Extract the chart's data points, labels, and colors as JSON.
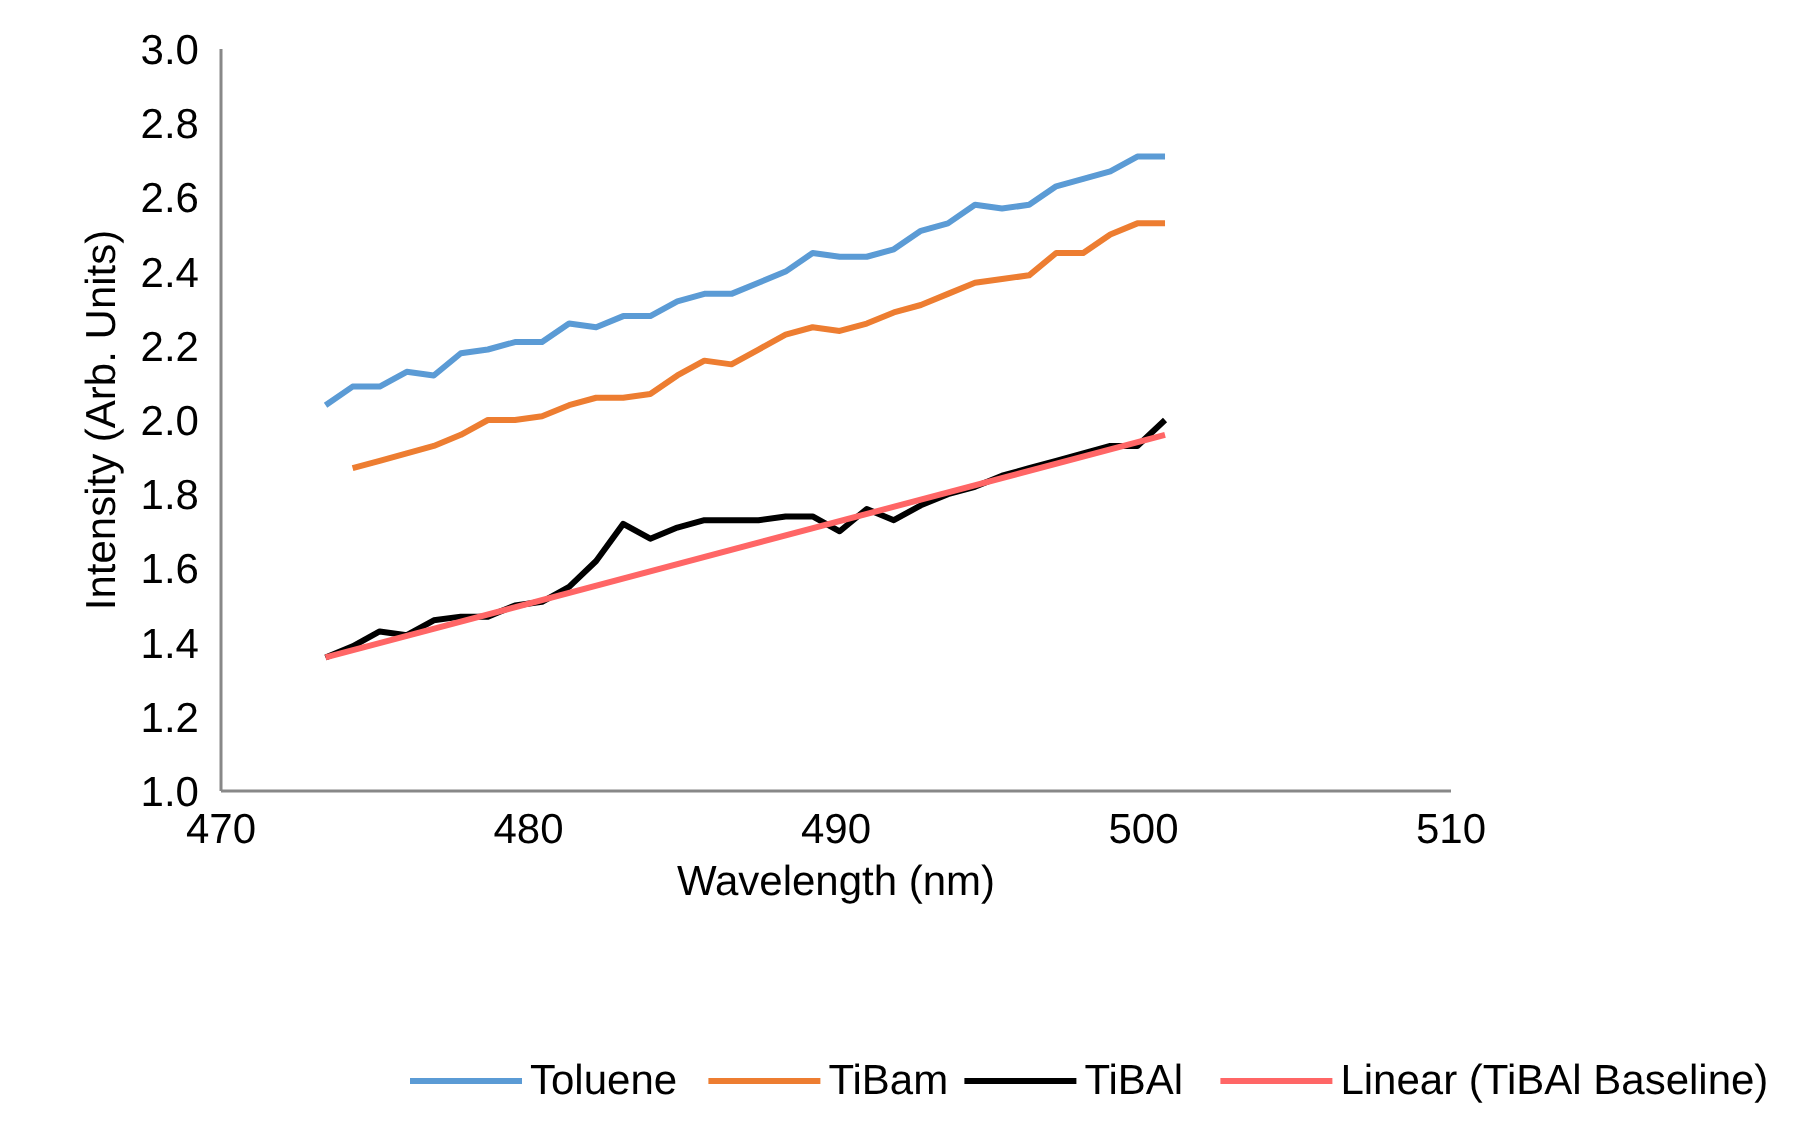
{
  "chart_data": {
    "type": "line",
    "xlabel": "Wavelength (nm)",
    "ylabel": "Intensity (Arb. Units)",
    "x": [
      473.4,
      474.28,
      475.16,
      476.04,
      476.92,
      477.8,
      478.68,
      479.56,
      480.44,
      481.32,
      482.2,
      483.08,
      483.96,
      484.84,
      485.72,
      486.6,
      487.48,
      488.36,
      489.24,
      490.12,
      491.0,
      491.88,
      492.76,
      493.64,
      494.52,
      495.4,
      496.28,
      497.16,
      498.04,
      498.92,
      499.8,
      500.7
    ],
    "series": [
      {
        "name": "Toluene",
        "color": "#5b9bd5",
        "values": [
          2.04,
          2.09,
          2.09,
          2.13,
          2.12,
          2.18,
          2.19,
          2.21,
          2.21,
          2.26,
          2.25,
          2.28,
          2.28,
          2.32,
          2.34,
          2.34,
          2.37,
          2.4,
          2.45,
          2.44,
          2.44,
          2.46,
          2.51,
          2.53,
          2.58,
          2.57,
          2.58,
          2.63,
          2.65,
          2.67,
          2.71,
          2.71
        ]
      },
      {
        "name": "TiBam",
        "color": "#ed7d31",
        "values": [
          null,
          1.87,
          1.89,
          1.91,
          1.93,
          1.96,
          2.0,
          2.0,
          2.01,
          2.04,
          2.06,
          2.06,
          2.07,
          2.12,
          2.16,
          2.15,
          2.19,
          2.23,
          2.25,
          2.24,
          2.26,
          2.29,
          2.31,
          2.34,
          2.37,
          2.38,
          2.39,
          2.45,
          2.45,
          2.5,
          2.53,
          2.53
        ]
      },
      {
        "name": "TiBAl",
        "color": "#000000",
        "values": [
          1.36,
          1.39,
          1.43,
          1.42,
          1.46,
          1.47,
          1.47,
          1.5,
          1.51,
          1.55,
          1.62,
          1.72,
          1.68,
          1.71,
          1.73,
          1.73,
          1.73,
          1.74,
          1.74,
          1.7,
          1.76,
          1.73,
          1.77,
          1.8,
          1.82,
          1.85,
          1.87,
          1.89,
          1.91,
          1.93,
          1.93,
          2.0
        ]
      },
      {
        "name": "Linear (TiBAl Baseline)",
        "color": "#ff6666",
        "x": [
          473.4,
          500.7
        ],
        "values": [
          1.36,
          1.96
        ]
      }
    ],
    "xlim": [
      470,
      510
    ],
    "xticks": [
      470,
      480,
      490,
      500,
      510
    ],
    "ylim": [
      1.0,
      3.0
    ],
    "yticks": [
      {
        "value": 1.0,
        "label": "1.0"
      },
      {
        "value": 1.2,
        "label": "1.2"
      },
      {
        "value": 1.4,
        "label": "1.4"
      },
      {
        "value": 1.6,
        "label": "1.6"
      },
      {
        "value": 1.8,
        "label": "1.8"
      },
      {
        "value": 2.0,
        "label": "2.0"
      },
      {
        "value": 2.2,
        "label": "2.2"
      },
      {
        "value": 2.4,
        "label": "2.4"
      },
      {
        "value": 2.6,
        "label": "2.6"
      },
      {
        "value": 2.8,
        "label": "2.8"
      },
      {
        "value": 3.0,
        "label": "3.0"
      }
    ],
    "legend": "bottom",
    "grid": false
  }
}
